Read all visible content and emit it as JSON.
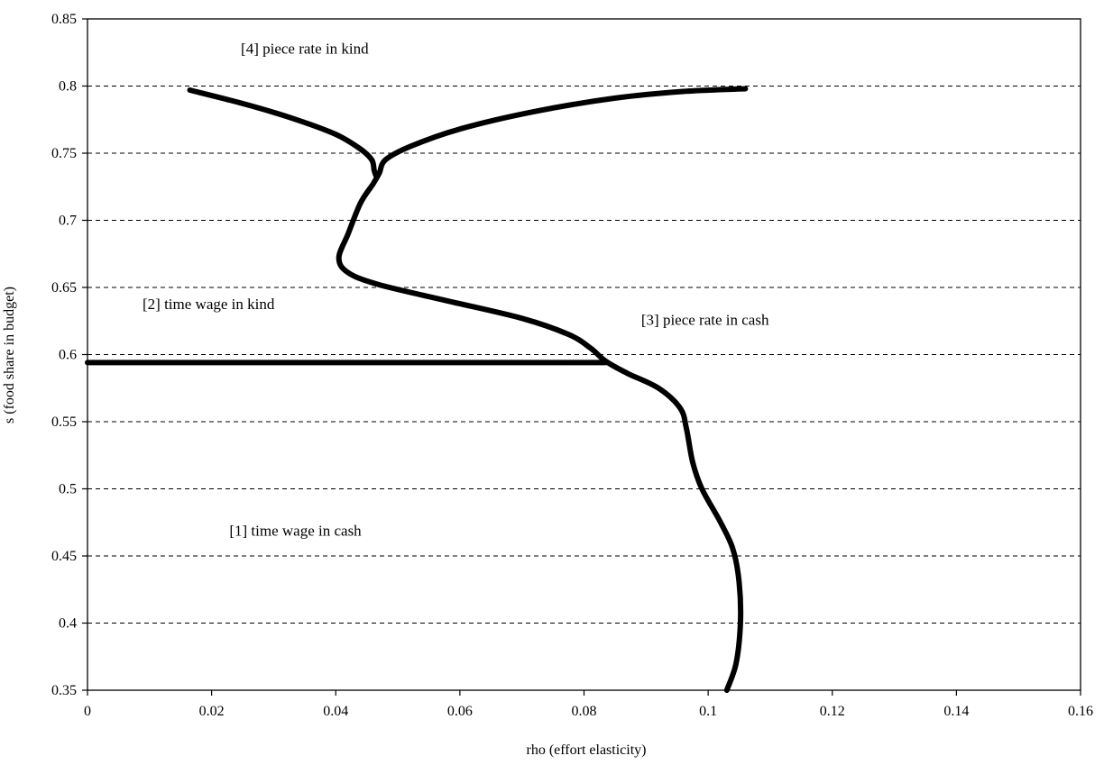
{
  "chart_data": {
    "type": "line",
    "title": "",
    "xlabel": "rho (effort elasticity)",
    "ylabel": "s (food share in budget)",
    "xlim": [
      0,
      0.16
    ],
    "ylim": [
      0.35,
      0.85
    ],
    "xticks": [
      0,
      0.02,
      0.04,
      0.06,
      0.08,
      0.1,
      0.12,
      0.14,
      0.16
    ],
    "xtick_labels": [
      "0",
      "0.02",
      "0.04",
      "0.06",
      "0.08",
      "0.1",
      "0.12",
      "0.14",
      "0.16"
    ],
    "yticks": [
      0.35,
      0.4,
      0.45,
      0.5,
      0.55,
      0.6,
      0.65,
      0.7,
      0.75,
      0.8,
      0.85
    ],
    "ytick_labels": [
      "0.35",
      "0.4",
      "0.45",
      "0.5",
      "0.55",
      "0.6",
      "0.65",
      "0.7",
      "0.75",
      "0.8",
      "0.85"
    ],
    "grid": "horizontal dashed",
    "legend": "none",
    "line_color": "#000000",
    "series": [
      {
        "points": [
          [
            0.103,
            0.35
          ],
          [
            0.1045,
            0.37
          ],
          [
            0.1052,
            0.4
          ],
          [
            0.105,
            0.43
          ],
          [
            0.104,
            0.455
          ],
          [
            0.102,
            0.475
          ],
          [
            0.099,
            0.5
          ],
          [
            0.0975,
            0.52
          ],
          [
            0.0965,
            0.545
          ],
          [
            0.0955,
            0.56
          ],
          [
            0.092,
            0.575
          ],
          [
            0.087,
            0.586
          ],
          [
            0.0835,
            0.595
          ],
          [
            0.081,
            0.605
          ],
          [
            0.0775,
            0.615
          ],
          [
            0.07,
            0.627
          ],
          [
            0.058,
            0.64
          ],
          [
            0.047,
            0.652
          ],
          [
            0.042,
            0.661
          ],
          [
            0.0405,
            0.672
          ],
          [
            0.042,
            0.69
          ],
          [
            0.044,
            0.713
          ],
          [
            0.046,
            0.727
          ],
          [
            0.047,
            0.735
          ],
          [
            0.048,
            0.745
          ],
          [
            0.052,
            0.755
          ],
          [
            0.06,
            0.768
          ],
          [
            0.072,
            0.781
          ],
          [
            0.085,
            0.791
          ],
          [
            0.096,
            0.796
          ],
          [
            0.106,
            0.798
          ]
        ]
      },
      {
        "points": [
          [
            0.0165,
            0.797
          ],
          [
            0.025,
            0.787
          ],
          [
            0.033,
            0.776
          ],
          [
            0.04,
            0.764
          ],
          [
            0.044,
            0.753
          ],
          [
            0.0458,
            0.745
          ],
          [
            0.0462,
            0.737
          ],
          [
            0.0465,
            0.733
          ]
        ]
      },
      {
        "points": [
          [
            0,
            0.594
          ],
          [
            0.0835,
            0.594
          ]
        ]
      }
    ],
    "annotations": [
      {
        "text": "[4] piece rate in kind",
        "x": 0.035,
        "y": 0.824
      },
      {
        "text": "[2] time wage in kind",
        "x": 0.0195,
        "y": 0.634
      },
      {
        "text": "[3] piece rate in cash",
        "x": 0.0995,
        "y": 0.622
      },
      {
        "text": "[1] time wage in cash",
        "x": 0.0335,
        "y": 0.465
      }
    ]
  }
}
